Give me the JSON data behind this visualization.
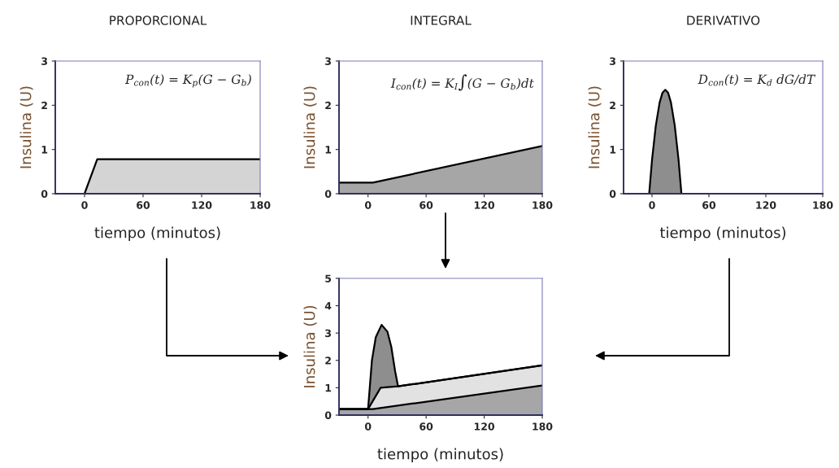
{
  "chart_data": [
    {
      "type": "area",
      "title": "PROPORCIONAL",
      "xlabel": "tiempo (minutos)",
      "ylabel": "Insulina (U)",
      "xlim": [
        -30,
        180
      ],
      "ylim": [
        0,
        3
      ],
      "xticks": [
        0,
        60,
        120,
        180
      ],
      "yticks": [
        0,
        1,
        2,
        3
      ],
      "annotations": [
        "P$_{con}$(t) = K$_{p}$(G − G$_{b}$)"
      ],
      "series": [
        {
          "color": "#d4d4d4",
          "x": [
            -30,
            0,
            13,
            180
          ],
          "values": [
            0,
            0,
            0.78,
            0.78
          ]
        }
      ]
    },
    {
      "type": "area",
      "title": "INTEGRAL",
      "ylabel": "Insulina (U)",
      "xlim": [
        -30,
        180
      ],
      "ylim": [
        0,
        3
      ],
      "xticks": [
        0,
        60,
        120,
        180
      ],
      "yticks": [
        0,
        1,
        2,
        3
      ],
      "annotations": [
        "I$_{con}$(t) = K$_{I}$∫(G − G$_{b}$)dt"
      ],
      "series": [
        {
          "color": "#a6a6a6",
          "x": [
            -30,
            5,
            180
          ],
          "values": [
            0.25,
            0.25,
            1.08
          ]
        }
      ]
    },
    {
      "type": "area",
      "title": "DERIVATIVO",
      "xlabel": "tiempo (minutos)",
      "ylabel": "Insulina (U)",
      "xlim": [
        -30,
        180
      ],
      "ylim": [
        0,
        3
      ],
      "xticks": [
        0,
        60,
        120,
        180
      ],
      "yticks": [
        0,
        1,
        2,
        3
      ],
      "annotations": [
        "D$_{con}$(t) = K$_{d}$ dG/dT"
      ],
      "series": [
        {
          "color": "#8e8e8e",
          "x": [
            -30,
            -3,
            0,
            4,
            8,
            11,
            14,
            17,
            20,
            24,
            28,
            31,
            180
          ],
          "values": [
            0,
            0,
            0.76,
            1.54,
            2.06,
            2.28,
            2.35,
            2.28,
            2.06,
            1.54,
            0.76,
            0,
            0
          ]
        }
      ]
    },
    {
      "type": "area",
      "xlabel": "tiempo (minutos)",
      "ylabel": "Insulina (U)",
      "xlim": [
        -30,
        180
      ],
      "ylim": [
        0,
        5
      ],
      "xticks": [
        0,
        60,
        120,
        180
      ],
      "yticks": [
        0,
        1,
        2,
        3,
        4,
        5
      ],
      "series": [
        {
          "color": "#8e8e8e",
          "x": [
            -30,
            0,
            4,
            8,
            14,
            20,
            24,
            28,
            31,
            180
          ],
          "values": [
            0.22,
            0.22,
            2.0,
            2.85,
            3.3,
            3.05,
            2.5,
            1.6,
            1.05,
            1.82
          ]
        },
        {
          "color": "#e2e2e2",
          "x": [
            -30,
            0,
            13,
            31,
            180
          ],
          "values": [
            0.22,
            0.22,
            1.0,
            1.05,
            1.82
          ]
        },
        {
          "color": "#a6a6a6",
          "x": [
            -30,
            5,
            180
          ],
          "values": [
            0.22,
            0.22,
            1.08
          ]
        }
      ]
    }
  ]
}
